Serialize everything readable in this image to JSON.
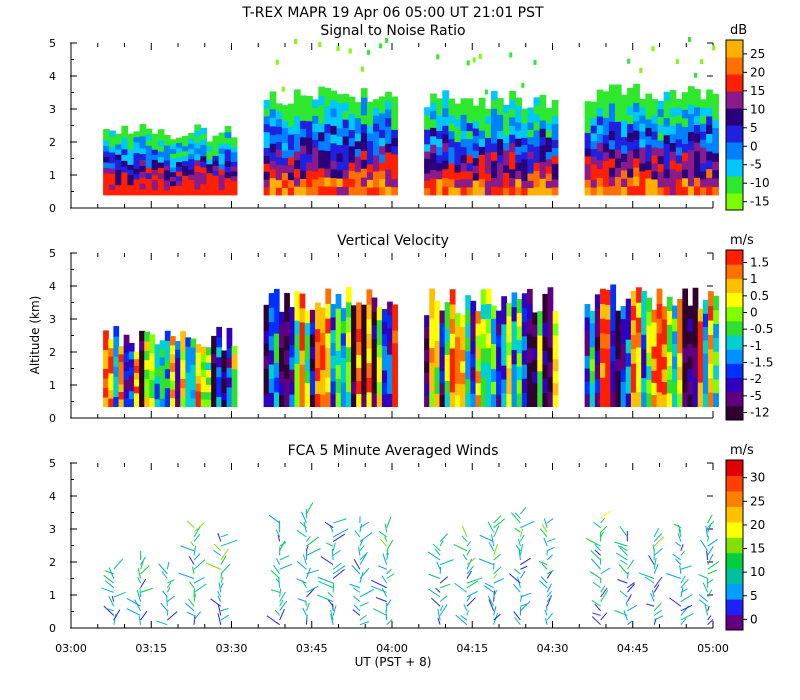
{
  "figure": {
    "title": "T-REX   MAPR 19 Apr 06   05:00 UT   21:01   PST",
    "xlabel": "UT  (PST + 8)",
    "ylabel": "Altitude (km)"
  },
  "colors": {
    "snr_scale": [
      "#7cfc00",
      "#2ee82e",
      "#00c8ff",
      "#0080ff",
      "#2020e0",
      "#2a007a",
      "#8b1a8b",
      "#ff2000",
      "#ff7000",
      "#ffb000"
    ],
    "vel_scale": [
      "#300030",
      "#600080",
      "#3000c0",
      "#0030ff",
      "#0090ff",
      "#00d0d0",
      "#30e030",
      "#80ff00",
      "#ffff00",
      "#ffc000",
      "#ff7000",
      "#ff2000"
    ],
    "wind_scale": [
      "#600080",
      "#2020ff",
      "#00a0ff",
      "#00c0a0",
      "#00d040",
      "#80e000",
      "#ffff00",
      "#ffc000",
      "#ff8000",
      "#ff4000",
      "#e00000"
    ]
  },
  "chart_data": [
    {
      "type": "heatmap",
      "title": "Signal to Noise Ratio",
      "units": "dB",
      "xlabel": "UT (PST + 8)",
      "ylabel": "",
      "xlim": [
        "03:00",
        "05:00"
      ],
      "ylim": [
        0,
        5
      ],
      "yticks": [
        "0",
        "1",
        "2",
        "3",
        "4",
        "5"
      ],
      "colorbar_ticks": [
        "25",
        "20",
        "15",
        "10",
        "5",
        "0",
        "-5",
        "-10",
        "-15"
      ],
      "data_blocks_minutes": [
        [
          6,
          31
        ],
        [
          36,
          61
        ],
        [
          66,
          91
        ],
        [
          96,
          121
        ]
      ],
      "echo_top_km": [
        2.3,
        3.4,
        3.3,
        3.5
      ]
    },
    {
      "type": "heatmap",
      "title": "Vertical Velocity",
      "units": "m/s",
      "ylabel": "Altitude (km)",
      "xlim": [
        "03:00",
        "05:00"
      ],
      "ylim": [
        0,
        5
      ],
      "yticks": [
        "0",
        "1",
        "2",
        "3",
        "4",
        "5"
      ],
      "colorbar_ticks": [
        "1.5",
        "1",
        "0.5",
        "0",
        "-0.5",
        "-1",
        "-1.5",
        "-2",
        "-5",
        "-12"
      ],
      "data_blocks_minutes": [
        [
          6,
          31
        ],
        [
          36,
          61
        ],
        [
          66,
          91
        ],
        [
          96,
          121
        ]
      ]
    },
    {
      "type": "scatter",
      "title": "FCA 5 Minute Averaged Winds",
      "units": "m/s",
      "xlabel": "UT  (PST + 8)",
      "xlim": [
        "03:00",
        "05:00"
      ],
      "ylim": [
        0,
        5
      ],
      "yticks": [
        "0",
        "1",
        "2",
        "3",
        "4",
        "5"
      ],
      "xticks": [
        "03:00",
        "03:15",
        "03:30",
        "03:45",
        "04:00",
        "04:15",
        "04:30",
        "04:45",
        "05:00"
      ],
      "colorbar_ticks": [
        "30",
        "25",
        "20",
        "15",
        "10",
        "5",
        "0"
      ],
      "profile_times_minutes": [
        8,
        13,
        18,
        23,
        28,
        39,
        44,
        49,
        54,
        59,
        69,
        74,
        79,
        84,
        89,
        99,
        104,
        109,
        114,
        119
      ],
      "profile_tops_km": [
        1.8,
        2.2,
        1.8,
        3.1,
        2.9,
        3.2,
        3.5,
        3.3,
        3.2,
        3.1,
        2.7,
        2.8,
        3.3,
        3.5,
        3.3,
        3.4,
        2.8,
        2.9,
        3.1,
        3.2
      ]
    }
  ]
}
